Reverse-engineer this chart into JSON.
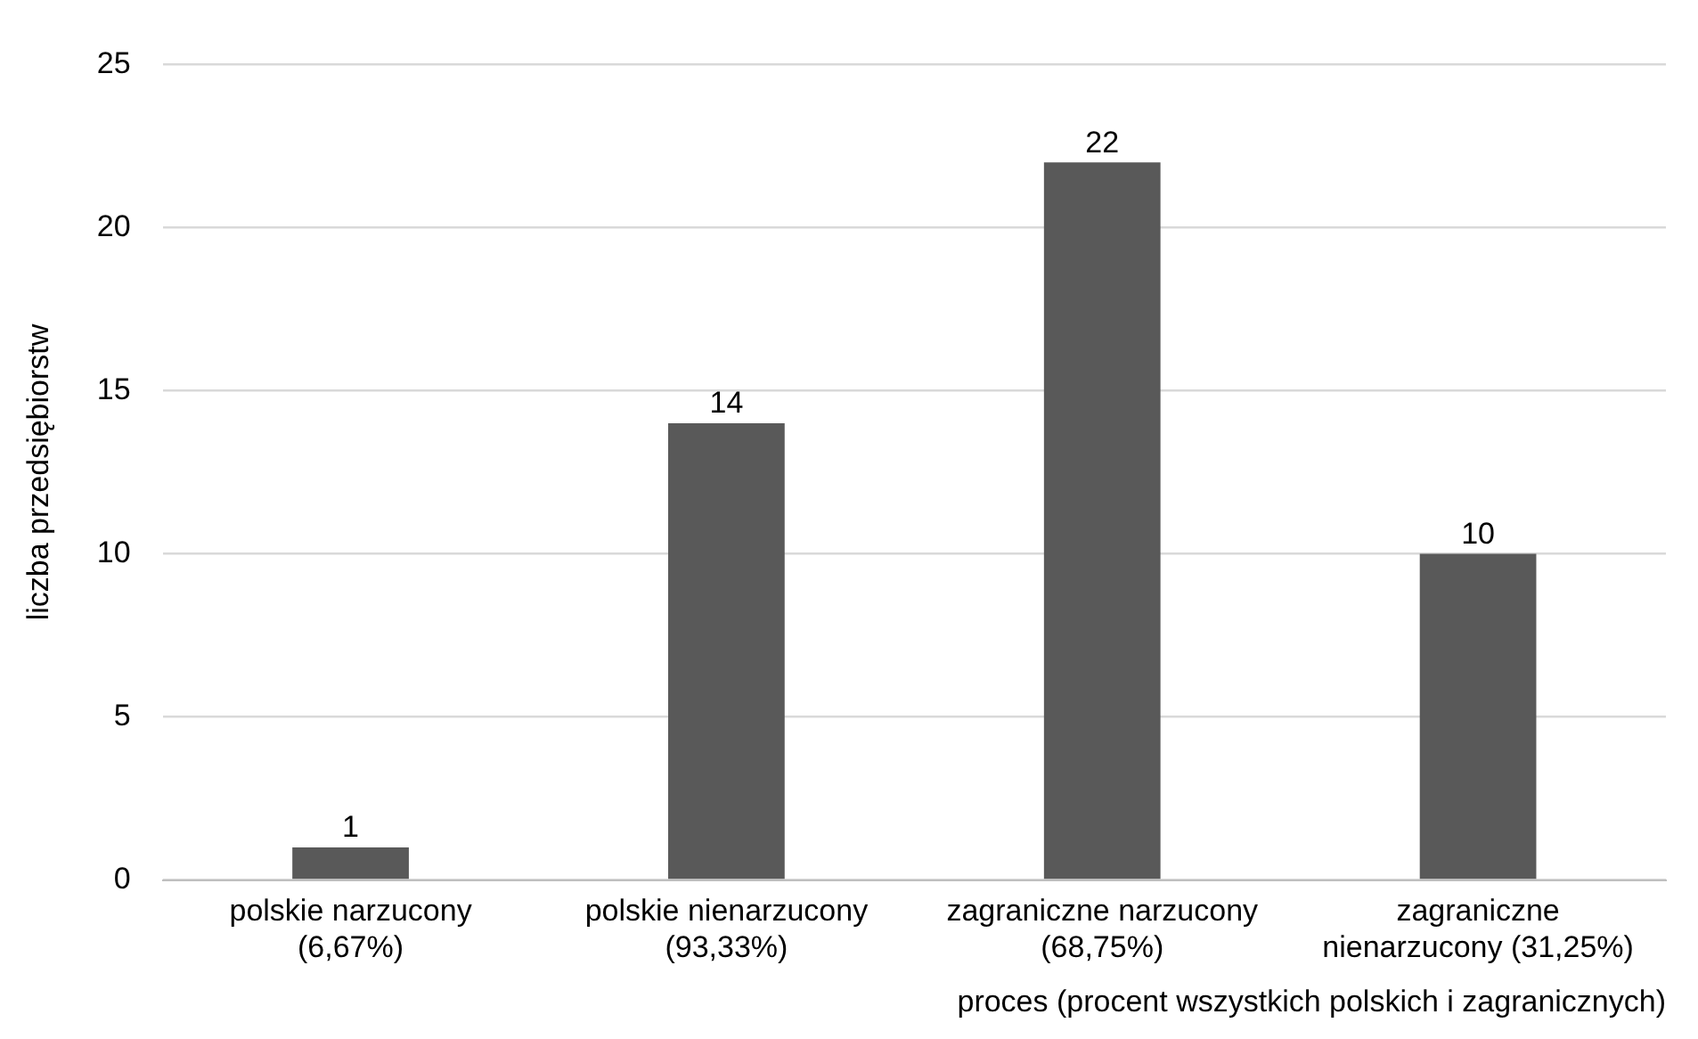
{
  "chart_data": {
    "type": "bar",
    "categories": [
      "polskie narzucony\n(6,67%)",
      "polskie nienarzucony\n(93,33%)",
      "zagraniczne narzucony\n(68,75%)",
      "zagraniczne\nnienarzucony (31,25%)"
    ],
    "values": [
      1,
      14,
      22,
      10
    ],
    "color": "#595959",
    "xlabel": "proces (procent wszystkich polskich i zagranicznych)",
    "ylabel": "liczba przedsiębiorstw",
    "ylim": [
      0,
      25
    ],
    "yticks": [
      0,
      5,
      10,
      15,
      20,
      25
    ],
    "grid": "y",
    "data_labels": true,
    "legend": false
  }
}
